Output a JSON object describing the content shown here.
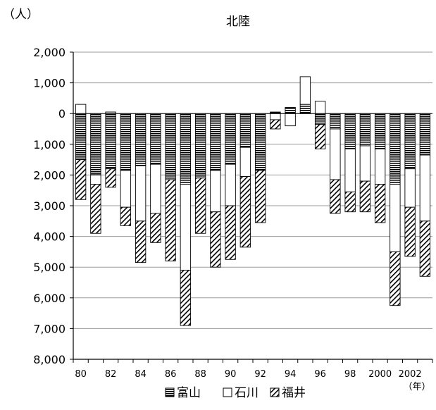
{
  "chart_data": {
    "type": "bar",
    "stacked": true,
    "title": "北陸",
    "ylabel": "（人）",
    "xlabel": "（年）",
    "y_axis_inverted_magnitude": "positive above zero, negative (outflow) plotted downward with tick labels shown without sign",
    "ylim": [
      -8000,
      2000
    ],
    "yticks": [
      2000,
      1000,
      0,
      -1000,
      -2000,
      -3000,
      -4000,
      -5000,
      -6000,
      -7000,
      -8000
    ],
    "ytick_labels": [
      "2,000",
      "1,000",
      "0",
      "1,000",
      "2,000",
      "3,000",
      "4,000",
      "5,000",
      "6,000",
      "7,000",
      "8,000"
    ],
    "categories": [
      "80",
      "81",
      "82",
      "83",
      "84",
      "85",
      "86",
      "87",
      "88",
      "89",
      "90",
      "91",
      "92",
      "93",
      "94",
      "95",
      "96",
      "97",
      "98",
      "99",
      "2000",
      "2001",
      "2002",
      "2003"
    ],
    "xtick_labels": [
      "80",
      "",
      "82",
      "",
      "84",
      "",
      "86",
      "",
      "88",
      "",
      "90",
      "",
      "92",
      "",
      "94",
      "",
      "96",
      "",
      "98",
      "",
      "2000",
      "",
      "2002",
      ""
    ],
    "grid": true,
    "legend_position": "bottom",
    "series": [
      {
        "name": "富山",
        "pattern": "horizontal-stripes",
        "values": [
          -1500,
          -2000,
          -1800,
          -1850,
          -1700,
          -1650,
          -2150,
          -2300,
          -2100,
          -1850,
          -1650,
          -1100,
          -1850,
          50,
          200,
          300,
          -350,
          -500,
          -1150,
          -1050,
          -1150,
          -2300,
          -1800,
          -1350
        ]
      },
      {
        "name": "石川",
        "pattern": "white",
        "values": [
          300,
          -300,
          50,
          -1200,
          -1800,
          -1600,
          0,
          -2800,
          0,
          -1350,
          -1350,
          -950,
          0,
          -200,
          -400,
          900,
          400,
          -1650,
          -1400,
          -1150,
          -1150,
          -2200,
          -1250,
          -2150
        ]
      },
      {
        "name": "福井",
        "pattern": "diagonal-hatch",
        "values": [
          -1300,
          -1600,
          -600,
          -600,
          -1350,
          -950,
          -2650,
          -1800,
          -1800,
          -1800,
          -1750,
          -2300,
          -1700,
          -300,
          0,
          0,
          -800,
          -1100,
          -650,
          -1000,
          -1250,
          -1750,
          -1600,
          -1800
        ]
      }
    ]
  }
}
